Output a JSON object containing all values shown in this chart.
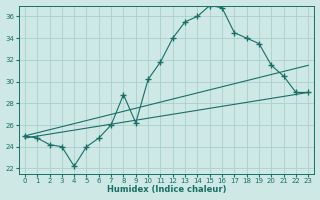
{
  "xlabel": "Humidex (Indice chaleur)",
  "bg_color": "#cde8e5",
  "grid_color": "#aacfcc",
  "line_color": "#1a6e66",
  "xlim": [
    -0.5,
    23.5
  ],
  "ylim": [
    21.5,
    37.0
  ],
  "yticks": [
    22,
    24,
    26,
    28,
    30,
    32,
    34,
    36
  ],
  "xticks": [
    0,
    1,
    2,
    3,
    4,
    5,
    6,
    7,
    8,
    9,
    10,
    11,
    12,
    13,
    14,
    15,
    16,
    17,
    18,
    19,
    20,
    21,
    22,
    23
  ],
  "line_top": {
    "x": [
      0,
      1,
      2,
      3,
      4,
      5,
      6,
      7,
      8,
      9,
      10,
      11,
      12,
      13,
      14,
      15,
      16,
      17,
      18,
      19,
      20,
      21,
      22,
      23
    ],
    "y": [
      25.0,
      24.8,
      24.2,
      24.0,
      22.2,
      24.0,
      24.8,
      26.0,
      28.8,
      26.2,
      30.2,
      31.8,
      34.0,
      35.5,
      36.0,
      37.0,
      36.8,
      34.5,
      34.0,
      33.5,
      31.5,
      30.5,
      29.0,
      29.0
    ]
  },
  "line_mid": {
    "x": [
      0,
      23
    ],
    "y": [
      25.0,
      31.5
    ]
  },
  "line_bot": {
    "x": [
      0,
      23
    ],
    "y": [
      24.8,
      29.0
    ]
  }
}
